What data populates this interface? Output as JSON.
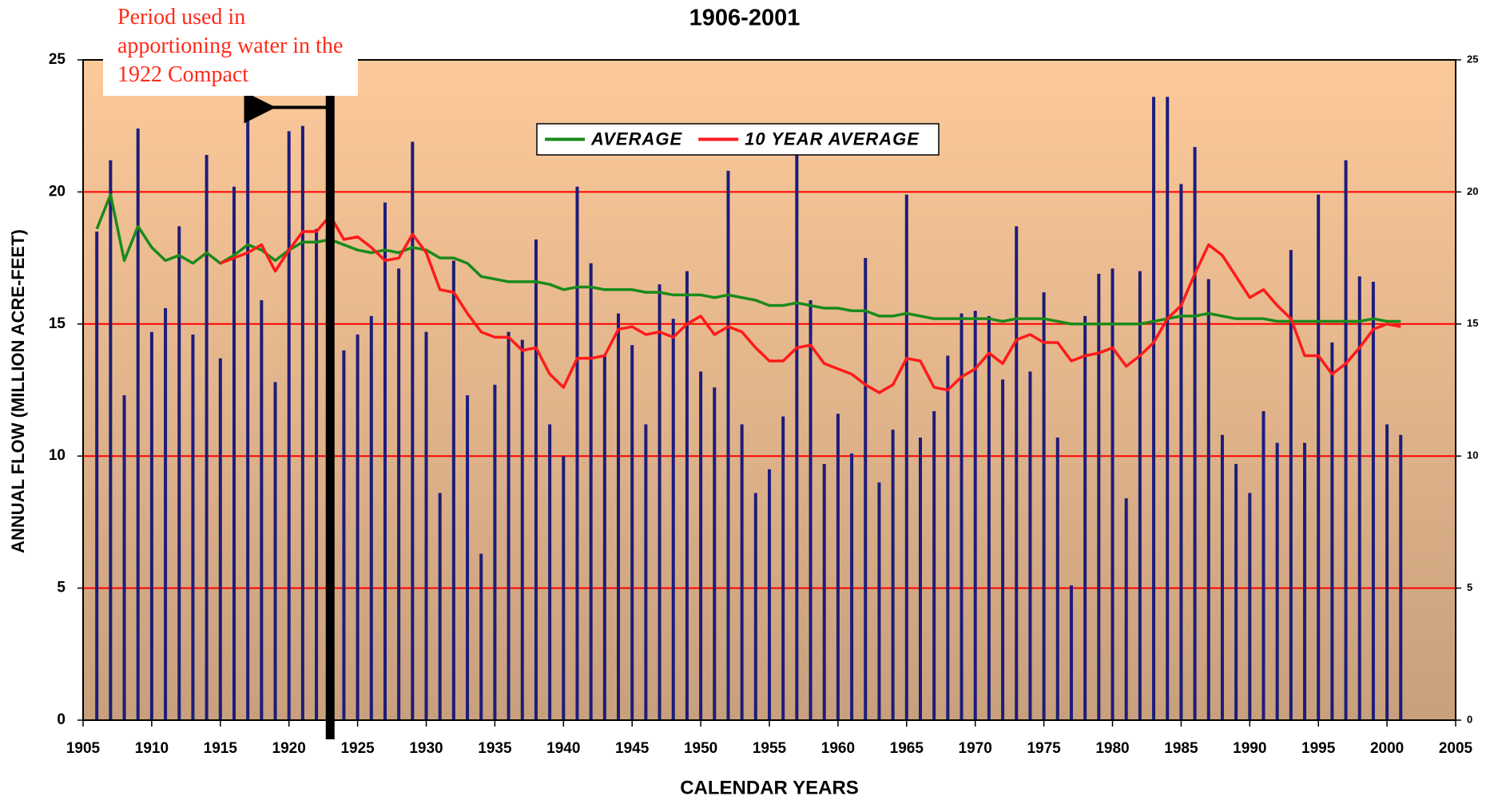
{
  "chart_data": {
    "type": "bar",
    "title": "1906-2001",
    "x_label": "CALENDAR YEARS",
    "y_label": "ANNUAL FLOW (MILLION ACRE-FEET)",
    "annotation": {
      "text": "Period used in apportioning water in the 1922 Compact",
      "x": 1923,
      "arrow_to": 1918,
      "arrow_y": 23.2
    },
    "x": [
      1906,
      1907,
      1908,
      1909,
      1910,
      1911,
      1912,
      1913,
      1914,
      1915,
      1916,
      1917,
      1918,
      1919,
      1920,
      1921,
      1922,
      1923,
      1924,
      1925,
      1926,
      1927,
      1928,
      1929,
      1930,
      1931,
      1932,
      1933,
      1934,
      1935,
      1936,
      1937,
      1938,
      1939,
      1940,
      1941,
      1942,
      1943,
      1944,
      1945,
      1946,
      1947,
      1948,
      1949,
      1950,
      1951,
      1952,
      1953,
      1954,
      1955,
      1956,
      1957,
      1958,
      1959,
      1960,
      1961,
      1962,
      1963,
      1964,
      1965,
      1966,
      1967,
      1968,
      1969,
      1970,
      1971,
      1972,
      1973,
      1974,
      1975,
      1976,
      1977,
      1978,
      1979,
      1980,
      1981,
      1982,
      1983,
      1984,
      1985,
      1986,
      1987,
      1988,
      1989,
      1990,
      1991,
      1992,
      1993,
      1994,
      1995,
      1996,
      1997,
      1998,
      1999,
      2000,
      2001
    ],
    "series": [
      {
        "type": "bar",
        "color": "#1c1c7a",
        "values": [
          18.5,
          21.2,
          12.3,
          22.4,
          14.7,
          15.6,
          18.7,
          14.6,
          21.4,
          13.7,
          20.2,
          22.9,
          15.9,
          12.8,
          22.3,
          22.5,
          18.6,
          20.2,
          14.0,
          14.6,
          15.3,
          19.6,
          17.1,
          21.9,
          14.7,
          8.6,
          17.4,
          12.3,
          6.3,
          12.7,
          14.7,
          14.4,
          18.2,
          11.2,
          10.0,
          20.2,
          17.3,
          13.8,
          15.4,
          14.2,
          11.2,
          16.5,
          15.2,
          17.0,
          13.2,
          12.6,
          20.8,
          11.2,
          8.6,
          9.5,
          11.5,
          21.6,
          15.9,
          9.7,
          11.6,
          10.1,
          17.5,
          9.0,
          11.0,
          19.9,
          10.7,
          11.7,
          13.8,
          15.4,
          15.5,
          15.3,
          12.9,
          18.7,
          13.2,
          16.2,
          10.7,
          5.1,
          15.3,
          16.9,
          17.1,
          8.4,
          17.0,
          23.6,
          23.6,
          20.3,
          21.7,
          16.7,
          10.8,
          9.7,
          8.6,
          11.7,
          10.5,
          17.8,
          10.5,
          19.9,
          14.3,
          21.2,
          16.8,
          16.6,
          11.2,
          10.8
        ]
      },
      {
        "type": "line",
        "name": "AVERAGE",
        "color": "#1a8a1a",
        "values": [
          18.6,
          19.9,
          17.4,
          18.7,
          17.9,
          17.4,
          17.6,
          17.3,
          17.7,
          17.3,
          17.6,
          18.0,
          17.8,
          17.4,
          17.8,
          18.1,
          18.1,
          18.2,
          18.0,
          17.8,
          17.7,
          17.8,
          17.7,
          17.9,
          17.8,
          17.5,
          17.5,
          17.3,
          16.8,
          16.7,
          16.6,
          16.6,
          16.6,
          16.5,
          16.3,
          16.4,
          16.4,
          16.3,
          16.3,
          16.3,
          16.2,
          16.2,
          16.1,
          16.1,
          16.1,
          16.0,
          16.1,
          16.0,
          15.9,
          15.7,
          15.7,
          15.8,
          15.7,
          15.6,
          15.6,
          15.5,
          15.5,
          15.3,
          15.3,
          15.4,
          15.3,
          15.2,
          15.2,
          15.2,
          15.2,
          15.2,
          15.1,
          15.2,
          15.2,
          15.2,
          15.1,
          15.0,
          15.0,
          15.0,
          15.0,
          15.0,
          15.0,
          15.1,
          15.2,
          15.3,
          15.3,
          15.4,
          15.3,
          15.2,
          15.2,
          15.2,
          15.1,
          15.1,
          15.1,
          15.1,
          15.1,
          15.1,
          15.1,
          15.2,
          15.1,
          15.1
        ]
      },
      {
        "type": "line",
        "name": "10 YEAR AVERAGE",
        "color": "#ff1a1a",
        "values": [
          null,
          null,
          null,
          null,
          null,
          null,
          null,
          null,
          null,
          17.3,
          17.5,
          17.7,
          18.0,
          17.0,
          17.8,
          18.5,
          18.5,
          19.1,
          18.2,
          18.3,
          17.9,
          17.4,
          17.5,
          18.4,
          17.7,
          16.3,
          16.2,
          15.4,
          14.7,
          14.5,
          14.5,
          14.0,
          14.1,
          13.1,
          12.6,
          13.7,
          13.7,
          13.8,
          14.8,
          14.9,
          14.6,
          14.7,
          14.5,
          15.0,
          15.3,
          14.6,
          14.9,
          14.7,
          14.1,
          13.6,
          13.6,
          14.1,
          14.2,
          13.5,
          13.3,
          13.1,
          12.7,
          12.4,
          12.7,
          13.7,
          13.6,
          12.6,
          12.5,
          13.0,
          13.3,
          13.9,
          13.5,
          14.4,
          14.6,
          14.3,
          14.3,
          13.6,
          13.8,
          13.9,
          14.1,
          13.4,
          13.8,
          14.3,
          15.2,
          15.7,
          16.9,
          18.0,
          17.6,
          16.8,
          16.0,
          16.3,
          15.7,
          15.2,
          13.8,
          13.8,
          13.1,
          13.5,
          14.1,
          14.8,
          15.0,
          14.9
        ]
      }
    ],
    "xlim": [
      1905,
      2005
    ],
    "xticks": [
      1905,
      1910,
      1915,
      1920,
      1925,
      1930,
      1935,
      1940,
      1945,
      1950,
      1955,
      1960,
      1965,
      1970,
      1975,
      1980,
      1985,
      1990,
      1995,
      2000,
      2005
    ],
    "ylim": [
      0,
      25
    ],
    "yticks": [
      0,
      5,
      10,
      15,
      20,
      25
    ],
    "y2lim": [
      0,
      25
    ],
    "y2ticks": [
      0,
      5,
      10,
      15,
      20,
      25
    ],
    "grid": true,
    "grid_color": "#ff0000",
    "legend": "top"
  }
}
